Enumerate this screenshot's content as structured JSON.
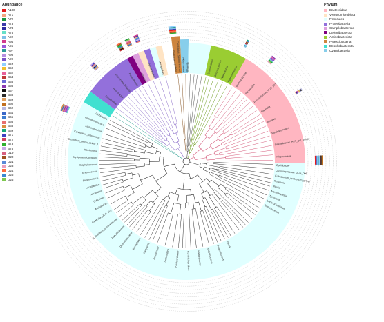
{
  "abundance_legend": {
    "title": "Abundance",
    "items": [
      {
        "label": "A100",
        "color": "#e41a1c"
      },
      {
        "label": "A71",
        "color": "#f4a582"
      },
      {
        "label": "A72",
        "color": "#1a9641"
      },
      {
        "label": "A73",
        "color": "#3a3aa8"
      },
      {
        "label": "A74",
        "color": "#2c2ca0"
      },
      {
        "label": "A75",
        "color": "#66e0c8"
      },
      {
        "label": "A92",
        "color": "#7fbfe8"
      },
      {
        "label": "A94",
        "color": "#d23c8c"
      },
      {
        "label": "A95",
        "color": "#9a5ad8"
      },
      {
        "label": "A97",
        "color": "#2b9a9a"
      },
      {
        "label": "A98",
        "color": "#b58ee0"
      },
      {
        "label": "A99",
        "color": "#7a52c8"
      },
      {
        "label": "B49",
        "color": "#8fd0ff"
      },
      {
        "label": "B50",
        "color": "#f0c030"
      },
      {
        "label": "B52",
        "color": "#e8609a"
      },
      {
        "label": "B54",
        "color": "#c03838"
      },
      {
        "label": "B55",
        "color": "#6a6ad6"
      },
      {
        "label": "B56",
        "color": "#8a3ab0"
      },
      {
        "label": "B57",
        "color": "#111111"
      },
      {
        "label": "B58",
        "color": "#2a2a2a"
      },
      {
        "label": "B59",
        "color": "#e0a060"
      },
      {
        "label": "B60",
        "color": "#c07020"
      },
      {
        "label": "B62",
        "color": "#b8b8e0"
      },
      {
        "label": "B64",
        "color": "#3a68c8"
      },
      {
        "label": "B65",
        "color": "#3c7cd0"
      },
      {
        "label": "B66",
        "color": "#e87070"
      },
      {
        "label": "B68",
        "color": "#d89040"
      },
      {
        "label": "B69",
        "color": "#18a878"
      },
      {
        "label": "B71",
        "color": "#4040c0"
      },
      {
        "label": "B72",
        "color": "#d04060"
      },
      {
        "label": "B73",
        "color": "#30b030"
      },
      {
        "label": "B75",
        "color": "#c8a8e8"
      },
      {
        "label": "D19",
        "color": "#d86080"
      },
      {
        "label": "D20",
        "color": "#a05020"
      },
      {
        "label": "D21",
        "color": "#5a8ad8"
      },
      {
        "label": "D23",
        "color": "#e8a0c0"
      },
      {
        "label": "D24",
        "color": "#ff6a3c"
      },
      {
        "label": "D25",
        "color": "#3a88d0"
      },
      {
        "label": "D26",
        "color": "#7ec850"
      }
    ]
  },
  "phylum_legend": {
    "title": "Phylum",
    "items": [
      {
        "label": "Bacteroidota",
        "color": "#ffb6c1"
      },
      {
        "label": "Verrucomicrobiota",
        "color": "#ffe4c4"
      },
      {
        "label": "Firmicutes",
        "color": "#e0ffff"
      },
      {
        "label": "Proteobacteria",
        "color": "#9370db"
      },
      {
        "label": "Campilobacterota",
        "color": "#dda0dd"
      },
      {
        "label": "Deferribacterota",
        "color": "#800080"
      },
      {
        "label": "Actinobacteriota",
        "color": "#9acd32"
      },
      {
        "label": "Patescibacteria",
        "color": "#cd853f"
      },
      {
        "label": "Desulfobacterota",
        "color": "#40e0d0"
      },
      {
        "label": "Cyanobacteria",
        "color": "#87ceeb"
      }
    ]
  },
  "tree_labels": {
    "actino": [
      "Enterorhabdus",
      "Bifidobacterium",
      "Adlercreutzia",
      "Eggerthellaceae"
    ],
    "bactero": [
      "Muribaculaceae",
      "Bacteroides",
      "Prevotellaceae_UCG_001",
      "Rikenella",
      "Alistipes",
      "Parabacteroides",
      "Rikenellaceae_RC9_gut_group",
      "Alloprevotella"
    ],
    "firm_right": [
      "Oscillibacter",
      "Lachnospiraceae_UCG_006",
      "Eubacterium_ventriosum_group",
      "Roseburia",
      "Blautia",
      "Marvinbryantia",
      "Tyzzerella",
      "Lachnoclostridium",
      "Ruminococcus"
    ],
    "firm_bottom": [
      "Dorea",
      "Anaerotruncus",
      "Butyricicoccus",
      "Intestinimonas",
      "Ruminiclostridium",
      "Colidextribacter",
      "Lachnospira",
      "Acetatifactor",
      "Harryflintia",
      "Monoglobus",
      "Defluviitaleaceae",
      "Faecalibaculum",
      "Candidatus_Saccharimonas",
      "Clostridia_UCG_014"
    ],
    "firm_left": [
      "Allobaculum",
      "Dubosiella",
      "Turicibacter",
      "Lactobacillus",
      "Streptococcus",
      "Enterococcus",
      "Staphylococcus",
      "Erysipelatoclostridium",
      "Romboutsia",
      "Clostridium_sensu_stricto_1",
      "Candidatus_Arthromitus",
      "Ligilactobacillus",
      "Limosilactobacillus",
      "Globicatella"
    ],
    "proteo": [
      "Desulfovibrio",
      "Helicobacter",
      "Escherichia-Shigella",
      "Parasutterella",
      "Proteus",
      "Acinetobacter",
      "Mucispirillum"
    ],
    "top_small": [
      "Gastranaerophilales",
      "Candidatus_Saccharimonas",
      "Akkermansia",
      "Bilophila"
    ]
  }
}
